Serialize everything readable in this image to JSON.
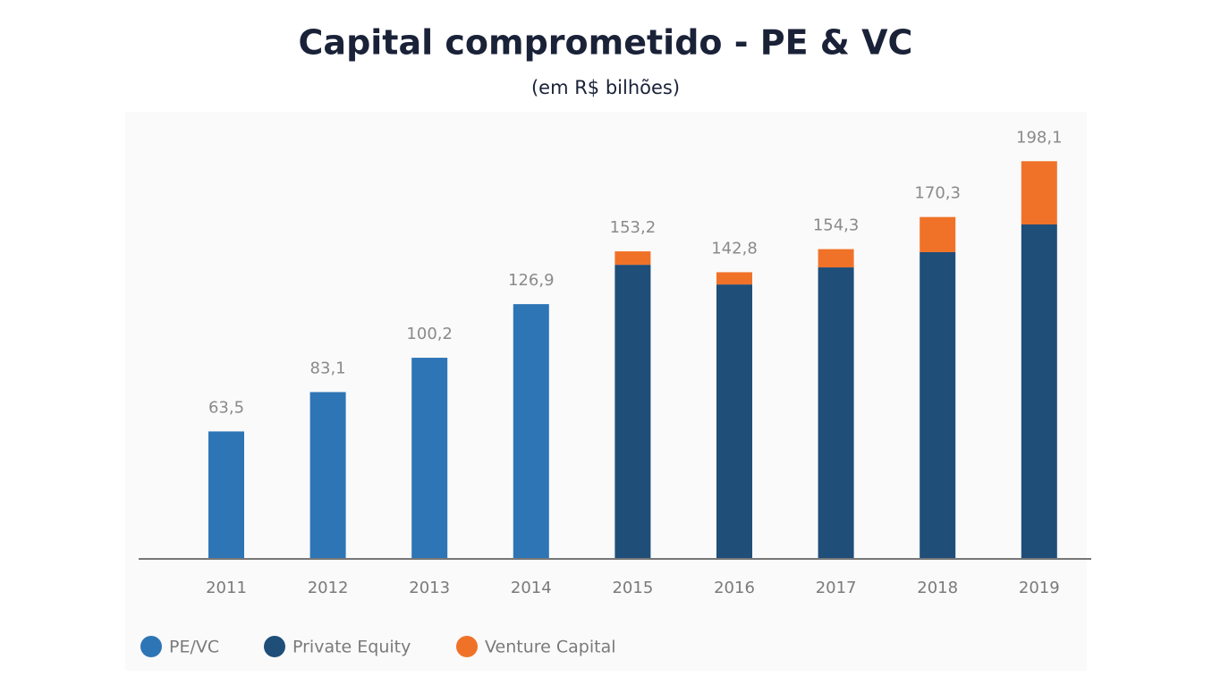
{
  "chart_data": {
    "type": "stacked-bar",
    "title": "Capital comprometido - PE & VC",
    "subtitle": "(em R$ bilhões)",
    "categories": [
      "2011",
      "2012",
      "2013",
      "2014",
      "2015",
      "2016",
      "2017",
      "2018",
      "2019"
    ],
    "series": [
      {
        "name": "PE/VC",
        "color": "#2e75b6",
        "values": [
          63.5,
          83.1,
          100.2,
          126.9,
          null,
          null,
          null,
          null,
          null
        ]
      },
      {
        "name": "Private Equity",
        "color": "#1f4e79",
        "values": [
          null,
          null,
          null,
          null,
          146.5,
          136.7,
          145.2,
          152.8,
          166.6
        ]
      },
      {
        "name": "Venture Capital",
        "color": "#f07228",
        "values": [
          null,
          null,
          null,
          null,
          6.7,
          6.1,
          9.1,
          17.5,
          31.5
        ]
      }
    ],
    "totals": {
      "values": [
        63.5,
        83.1,
        100.2,
        126.9,
        153.2,
        142.8,
        154.3,
        170.3,
        198.1
      ],
      "value_labels": [
        "63,5",
        "83,1",
        "100,2",
        "126,9",
        "153,2",
        "142,8",
        "154,3",
        "170,3",
        "198,1"
      ]
    },
    "ylim": [
      0,
      200
    ]
  }
}
